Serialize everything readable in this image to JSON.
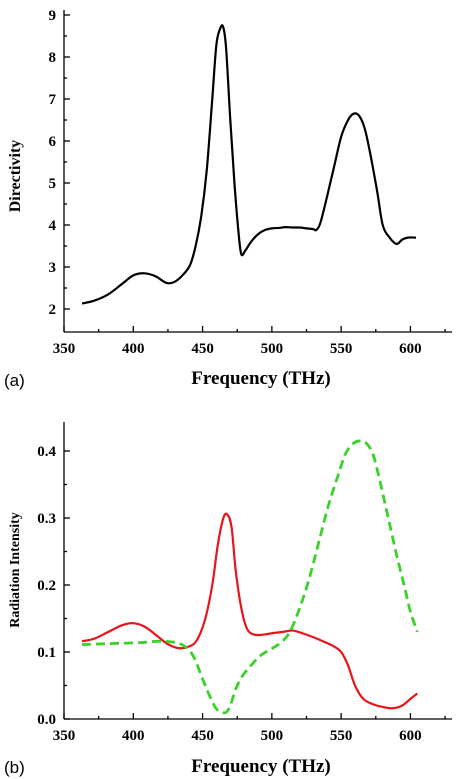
{
  "chart_data": [
    {
      "type": "line",
      "panel_label": "(a)",
      "xlabel": "Frequency (THz)",
      "ylabel": "Directivity",
      "xlim": [
        350,
        630
      ],
      "ylim": [
        1.5,
        9
      ],
      "xticks": [
        350,
        400,
        450,
        500,
        550,
        600
      ],
      "yticks": [
        2,
        3,
        4,
        5,
        6,
        7,
        8,
        9
      ],
      "grid": false,
      "series": [
        {
          "color": "#000000",
          "dash": "solid",
          "x": [
            363,
            372,
            382,
            392,
            400,
            408,
            416,
            424,
            430,
            436,
            441,
            445,
            449,
            453,
            457,
            460,
            463,
            465,
            467,
            470,
            473,
            476,
            478,
            481,
            485,
            490,
            495,
            500,
            505,
            510,
            515,
            520,
            525,
            530,
            532,
            535,
            540,
            545,
            550,
            555,
            559,
            563,
            567,
            571,
            576,
            580,
            585,
            590,
            594,
            598,
            604
          ],
          "y": [
            2.13,
            2.2,
            2.35,
            2.6,
            2.8,
            2.85,
            2.78,
            2.62,
            2.65,
            2.82,
            3.05,
            3.5,
            4.2,
            5.3,
            7.0,
            8.3,
            8.7,
            8.7,
            8.2,
            6.5,
            5.0,
            3.8,
            3.3,
            3.4,
            3.6,
            3.78,
            3.88,
            3.92,
            3.93,
            3.95,
            3.94,
            3.94,
            3.92,
            3.9,
            3.88,
            4.05,
            4.7,
            5.4,
            6.1,
            6.5,
            6.65,
            6.6,
            6.3,
            5.7,
            4.8,
            4.0,
            3.7,
            3.55,
            3.65,
            3.7,
            3.7
          ]
        }
      ]
    },
    {
      "type": "line",
      "panel_label": "(b)",
      "xlabel": "Frequency (THz)",
      "ylabel": "Radiation Intensity",
      "xlim": [
        350,
        630
      ],
      "ylim": [
        0,
        0.45
      ],
      "xticks": [
        350,
        400,
        450,
        500,
        550,
        600
      ],
      "yticks": [
        "0.0",
        "0.1",
        "0.2",
        "0.3",
        "0.4"
      ],
      "grid": false,
      "series": [
        {
          "color": "#e8141a",
          "dash": "solid",
          "x": [
            363,
            372,
            382,
            392,
            400,
            408,
            416,
            424,
            432,
            440,
            446,
            452,
            457,
            461,
            465,
            468,
            471,
            474,
            478,
            482,
            487,
            494,
            500,
            508,
            515,
            522,
            530,
            538,
            545,
            550,
            555,
            560,
            566,
            573,
            580,
            587,
            594,
            600,
            605
          ],
          "y": [
            0.116,
            0.12,
            0.13,
            0.14,
            0.143,
            0.138,
            0.126,
            0.113,
            0.106,
            0.108,
            0.118,
            0.15,
            0.2,
            0.26,
            0.3,
            0.305,
            0.285,
            0.22,
            0.165,
            0.135,
            0.126,
            0.126,
            0.128,
            0.13,
            0.132,
            0.128,
            0.122,
            0.115,
            0.108,
            0.1,
            0.08,
            0.05,
            0.03,
            0.022,
            0.018,
            0.016,
            0.02,
            0.03,
            0.038
          ]
        },
        {
          "color": "#3ad12a",
          "dash": "dashed",
          "x": [
            363,
            375,
            390,
            405,
            418,
            428,
            436,
            443,
            450,
            455,
            460,
            464,
            467,
            470,
            474,
            479,
            485,
            492,
            500,
            507,
            513,
            520,
            527,
            534,
            541,
            548,
            553,
            558,
            563,
            568,
            573,
            578,
            584,
            590,
            596,
            600,
            605
          ],
          "y": [
            0.111,
            0.112,
            0.113,
            0.114,
            0.116,
            0.115,
            0.11,
            0.095,
            0.06,
            0.035,
            0.015,
            0.01,
            0.01,
            0.02,
            0.045,
            0.065,
            0.08,
            0.095,
            0.105,
            0.115,
            0.13,
            0.165,
            0.21,
            0.265,
            0.32,
            0.365,
            0.395,
            0.41,
            0.415,
            0.412,
            0.395,
            0.355,
            0.3,
            0.245,
            0.195,
            0.16,
            0.13
          ]
        }
      ]
    }
  ]
}
